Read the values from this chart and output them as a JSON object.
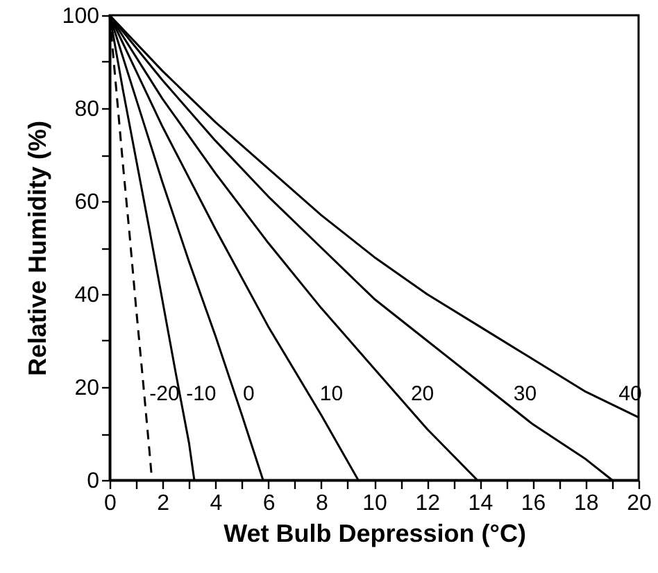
{
  "chart_data": {
    "type": "line",
    "xlabel": "Wet Bulb Depression  (°C)",
    "ylabel": "Relative Humidity (%)",
    "xlim": [
      0,
      20
    ],
    "ylim": [
      0,
      100
    ],
    "xticks": [
      0,
      {
        "value": 1,
        "label": null
      },
      2,
      {
        "value": 3,
        "label": null
      },
      4,
      {
        "value": 5,
        "label": null
      },
      6,
      {
        "value": 7,
        "label": null
      },
      8,
      {
        "value": 9,
        "label": null
      },
      10,
      {
        "value": 11,
        "label": null
      },
      12,
      {
        "value": 13,
        "label": null
      },
      14,
      {
        "value": 15,
        "label": null
      },
      16,
      {
        "value": 17,
        "label": null
      },
      18,
      {
        "value": 19,
        "label": null
      },
      20
    ],
    "yticks": [
      0,
      {
        "value": 10,
        "label": null
      },
      20,
      {
        "value": 30,
        "label": null
      },
      40,
      {
        "value": 50,
        "label": null
      },
      60,
      {
        "value": 70,
        "label": null
      },
      80,
      {
        "value": 90,
        "label": null
      },
      100
    ],
    "grid": false,
    "marker": "none",
    "series": [
      {
        "name": "-20",
        "color": "#000000",
        "line_style": "dashed",
        "x": [
          0,
          0.25,
          0.5,
          0.75,
          1,
          1.25,
          1.5,
          1.6
        ],
        "values": [
          100,
          84,
          68,
          53,
          37,
          22,
          6.5,
          0
        ]
      },
      {
        "name": "-10",
        "color": "#000000",
        "line_style": "solid",
        "x": [
          0,
          0.5,
          1,
          1.5,
          2,
          2.5,
          3,
          3.2
        ],
        "values": [
          100,
          84,
          69,
          54,
          38.5,
          23,
          8,
          0
        ]
      },
      {
        "name": "0",
        "color": "#000000",
        "line_style": "solid",
        "x": [
          0,
          1,
          2,
          3,
          4,
          5,
          5.8
        ],
        "values": [
          100,
          82,
          64,
          47,
          31,
          14,
          0
        ]
      },
      {
        "name": "10",
        "color": "#000000",
        "line_style": "solid",
        "x": [
          0,
          1,
          2,
          4,
          6,
          8,
          9.4
        ],
        "values": [
          100,
          88,
          76,
          54,
          33,
          14,
          0
        ]
      },
      {
        "name": "20",
        "color": "#000000",
        "line_style": "solid",
        "x": [
          0,
          2,
          4,
          6,
          8,
          10,
          12,
          13.9
        ],
        "values": [
          100,
          82,
          66,
          51,
          37,
          24,
          11,
          0
        ]
      },
      {
        "name": "30",
        "color": "#000000",
        "line_style": "solid",
        "x": [
          0,
          2,
          4,
          6,
          8,
          10,
          12,
          14,
          16,
          18,
          19
        ],
        "values": [
          100,
          86,
          73,
          61,
          50,
          39,
          30,
          21,
          12,
          4.5,
          0
        ]
      },
      {
        "name": "40",
        "color": "#000000",
        "line_style": "solid",
        "x": [
          0,
          2,
          4,
          6,
          8,
          10,
          12,
          14,
          16,
          18,
          20
        ],
        "values": [
          100,
          88,
          77,
          67,
          57,
          48,
          40,
          33,
          26,
          19,
          13.5
        ]
      }
    ]
  }
}
